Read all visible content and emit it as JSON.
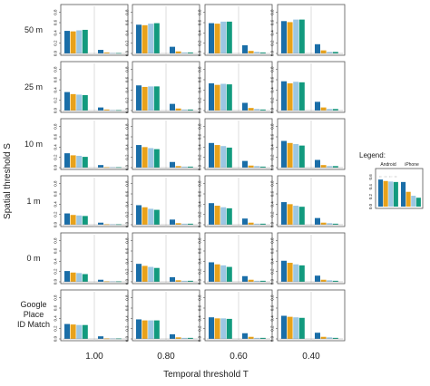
{
  "chart_data": {
    "type": "bar",
    "xlabel": "Temporal threshold T",
    "ylabel": "Spatial threshold S",
    "columns": [
      "1.00",
      "0.80",
      "0.60",
      "0.40"
    ],
    "rows": [
      "50 m",
      "25 m",
      "10 m",
      "1 m",
      "0 m",
      "Google Place ID Match"
    ],
    "y_ticks": [
      "0.0",
      "0.2",
      "0.4",
      "0.6",
      "0.8"
    ],
    "ylim": [
      0,
      0.9
    ],
    "grid": false,
    "series_colors": [
      "#1a6ea8",
      "#e8a21b",
      "#9cc7e3",
      "#129a7e"
    ],
    "panels": [
      [
        {
          "android": [
            0.44,
            0.43,
            0.45,
            0.46
          ],
          "iphone": [
            0.07,
            0.02,
            0.01,
            0.01
          ]
        },
        {
          "android": [
            0.56,
            0.55,
            0.58,
            0.59
          ],
          "iphone": [
            0.13,
            0.04,
            0.02,
            0.02
          ]
        },
        {
          "android": [
            0.59,
            0.58,
            0.62,
            0.62
          ],
          "iphone": [
            0.16,
            0.05,
            0.03,
            0.02
          ]
        },
        {
          "android": [
            0.63,
            0.61,
            0.66,
            0.66
          ],
          "iphone": [
            0.18,
            0.06,
            0.03,
            0.03
          ]
        }
      ],
      [
        {
          "android": [
            0.36,
            0.32,
            0.31,
            0.3
          ],
          "iphone": [
            0.06,
            0.02,
            0.01,
            0.01
          ]
        },
        {
          "android": [
            0.49,
            0.46,
            0.47,
            0.47
          ],
          "iphone": [
            0.13,
            0.04,
            0.02,
            0.02
          ]
        },
        {
          "android": [
            0.53,
            0.5,
            0.52,
            0.51
          ],
          "iphone": [
            0.15,
            0.05,
            0.03,
            0.02
          ]
        },
        {
          "android": [
            0.57,
            0.53,
            0.56,
            0.55
          ],
          "iphone": [
            0.17,
            0.06,
            0.03,
            0.03
          ]
        }
      ],
      [
        {
          "android": [
            0.28,
            0.24,
            0.23,
            0.21
          ],
          "iphone": [
            0.05,
            0.01,
            0.01,
            0.01
          ]
        },
        {
          "android": [
            0.44,
            0.4,
            0.38,
            0.36
          ],
          "iphone": [
            0.11,
            0.03,
            0.02,
            0.02
          ]
        },
        {
          "android": [
            0.48,
            0.44,
            0.42,
            0.39
          ],
          "iphone": [
            0.13,
            0.04,
            0.03,
            0.02
          ]
        },
        {
          "android": [
            0.52,
            0.48,
            0.46,
            0.43
          ],
          "iphone": [
            0.15,
            0.05,
            0.03,
            0.03
          ]
        }
      ],
      [
        {
          "android": [
            0.22,
            0.19,
            0.18,
            0.17
          ],
          "iphone": [
            0.04,
            0.01,
            0.01,
            0.01
          ]
        },
        {
          "android": [
            0.38,
            0.34,
            0.31,
            0.29
          ],
          "iphone": [
            0.1,
            0.03,
            0.02,
            0.02
          ]
        },
        {
          "android": [
            0.42,
            0.37,
            0.34,
            0.32
          ],
          "iphone": [
            0.12,
            0.04,
            0.02,
            0.02
          ]
        },
        {
          "android": [
            0.44,
            0.4,
            0.37,
            0.35
          ],
          "iphone": [
            0.13,
            0.04,
            0.03,
            0.02
          ]
        }
      ],
      [
        {
          "android": [
            0.21,
            0.18,
            0.17,
            0.15
          ],
          "iphone": [
            0.04,
            0.01,
            0.01,
            0.01
          ]
        },
        {
          "android": [
            0.35,
            0.31,
            0.29,
            0.27
          ],
          "iphone": [
            0.09,
            0.03,
            0.02,
            0.02
          ]
        },
        {
          "android": [
            0.38,
            0.34,
            0.32,
            0.29
          ],
          "iphone": [
            0.11,
            0.04,
            0.02,
            0.02
          ]
        },
        {
          "android": [
            0.41,
            0.37,
            0.34,
            0.32
          ],
          "iphone": [
            0.12,
            0.04,
            0.03,
            0.02
          ]
        }
      ],
      [
        {
          "android": [
            0.29,
            0.28,
            0.27,
            0.27
          ],
          "iphone": [
            0.05,
            0.01,
            0.01,
            0.01
          ]
        },
        {
          "android": [
            0.38,
            0.36,
            0.36,
            0.36
          ],
          "iphone": [
            0.09,
            0.03,
            0.02,
            0.02
          ]
        },
        {
          "android": [
            0.42,
            0.4,
            0.4,
            0.39
          ],
          "iphone": [
            0.11,
            0.04,
            0.02,
            0.02
          ]
        },
        {
          "android": [
            0.45,
            0.43,
            0.42,
            0.41
          ],
          "iphone": [
            0.12,
            0.04,
            0.03,
            0.02
          ]
        }
      ]
    ],
    "legend": {
      "title": "Legend:",
      "groups": [
        "Android",
        "iPhone"
      ],
      "y_ticks": [
        "0.0",
        "0.2",
        "0.4",
        "0.6"
      ],
      "android": [
        0.55,
        0.52,
        0.51,
        0.5
      ],
      "iphone": [
        0.5,
        0.3,
        0.22,
        0.18
      ]
    }
  }
}
